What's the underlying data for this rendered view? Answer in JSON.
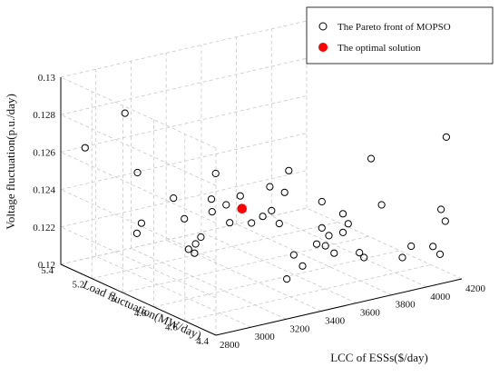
{
  "chart_data": {
    "type": "scatter",
    "projection": "3d",
    "xlabel": "LCC of ESSs($/day)",
    "ylabel": "Load fluctuation(MW/day)",
    "zlabel": "Voltage fluctuation(p.u./day)",
    "xlim": [
      2800,
      4200
    ],
    "ylim": [
      4.4,
      5.4
    ],
    "zlim": [
      0.12,
      0.13
    ],
    "x_ticks": [
      "2800",
      "3000",
      "3200",
      "3400",
      "3600",
      "3800",
      "4000",
      "4200"
    ],
    "y_ticks": [
      "4.4",
      "4.6",
      "4.8",
      "5",
      "5.2",
      "5.4"
    ],
    "z_ticks": [
      "0.12",
      "0.122",
      "0.124",
      "0.126",
      "0.128",
      "0.13"
    ],
    "grid": true,
    "legend_position": "top-right",
    "series": [
      {
        "name": "The Pareto front of MOPSO",
        "marker": "open-circle",
        "color": "#000000",
        "points": [
          [
            2900,
            5.1,
            0.129
          ],
          [
            2850,
            5.3,
            0.1265
          ],
          [
            2880,
            5.0,
            0.123
          ],
          [
            2950,
            5.05,
            0.1232
          ],
          [
            3000,
            4.9,
            0.125
          ],
          [
            3060,
            5.2,
            0.1251
          ],
          [
            3150,
            5.0,
            0.1232
          ],
          [
            3120,
            4.9,
            0.1218
          ],
          [
            3130,
            4.95,
            0.1218
          ],
          [
            3170,
            4.95,
            0.122
          ],
          [
            3200,
            4.95,
            0.1223
          ],
          [
            3220,
            4.9,
            0.1238
          ],
          [
            3260,
            4.95,
            0.1242
          ],
          [
            3240,
            4.9,
            0.1258
          ],
          [
            3300,
            4.9,
            0.124
          ],
          [
            3320,
            4.9,
            0.123
          ],
          [
            3380,
            4.9,
            0.1243
          ],
          [
            3400,
            4.85,
            0.123
          ],
          [
            3420,
            4.8,
            0.1235
          ],
          [
            3470,
            4.8,
            0.1237
          ],
          [
            3460,
            4.8,
            0.125
          ],
          [
            3470,
            4.75,
            0.1232
          ],
          [
            3500,
            4.75,
            0.1248
          ],
          [
            3480,
            4.7,
            0.1262
          ],
          [
            3380,
            4.6,
            0.121
          ],
          [
            3420,
            4.6,
            0.1222
          ],
          [
            3470,
            4.6,
            0.1215
          ],
          [
            3550,
            4.6,
            0.1225
          ],
          [
            3580,
            4.6,
            0.1247
          ],
          [
            3580,
            4.6,
            0.1233
          ],
          [
            3600,
            4.6,
            0.1223
          ],
          [
            3620,
            4.6,
            0.1228
          ],
          [
            3650,
            4.6,
            0.1218
          ],
          [
            3700,
            4.6,
            0.1238
          ],
          [
            3700,
            4.6,
            0.1228
          ],
          [
            3730,
            4.6,
            0.1232
          ],
          [
            3750,
            4.55,
            0.1218
          ],
          [
            3820,
            4.6,
            0.1212
          ],
          [
            3920,
            4.6,
            0.1238
          ],
          [
            3860,
            4.6,
            0.1264
          ],
          [
            3950,
            4.5,
            0.1213
          ],
          [
            4000,
            4.5,
            0.1218
          ],
          [
            4170,
            4.5,
            0.1234
          ],
          [
            4150,
            4.45,
            0.123
          ],
          [
            4200,
            4.5,
            0.1272
          ],
          [
            4080,
            4.45,
            0.1218
          ],
          [
            4120,
            4.45,
            0.1213
          ]
        ]
      },
      {
        "name": "The optimal solution",
        "marker": "filled-circle",
        "color": "#ff0000",
        "points": [
          [
            3390,
            4.9,
            0.1236
          ]
        ]
      }
    ]
  }
}
